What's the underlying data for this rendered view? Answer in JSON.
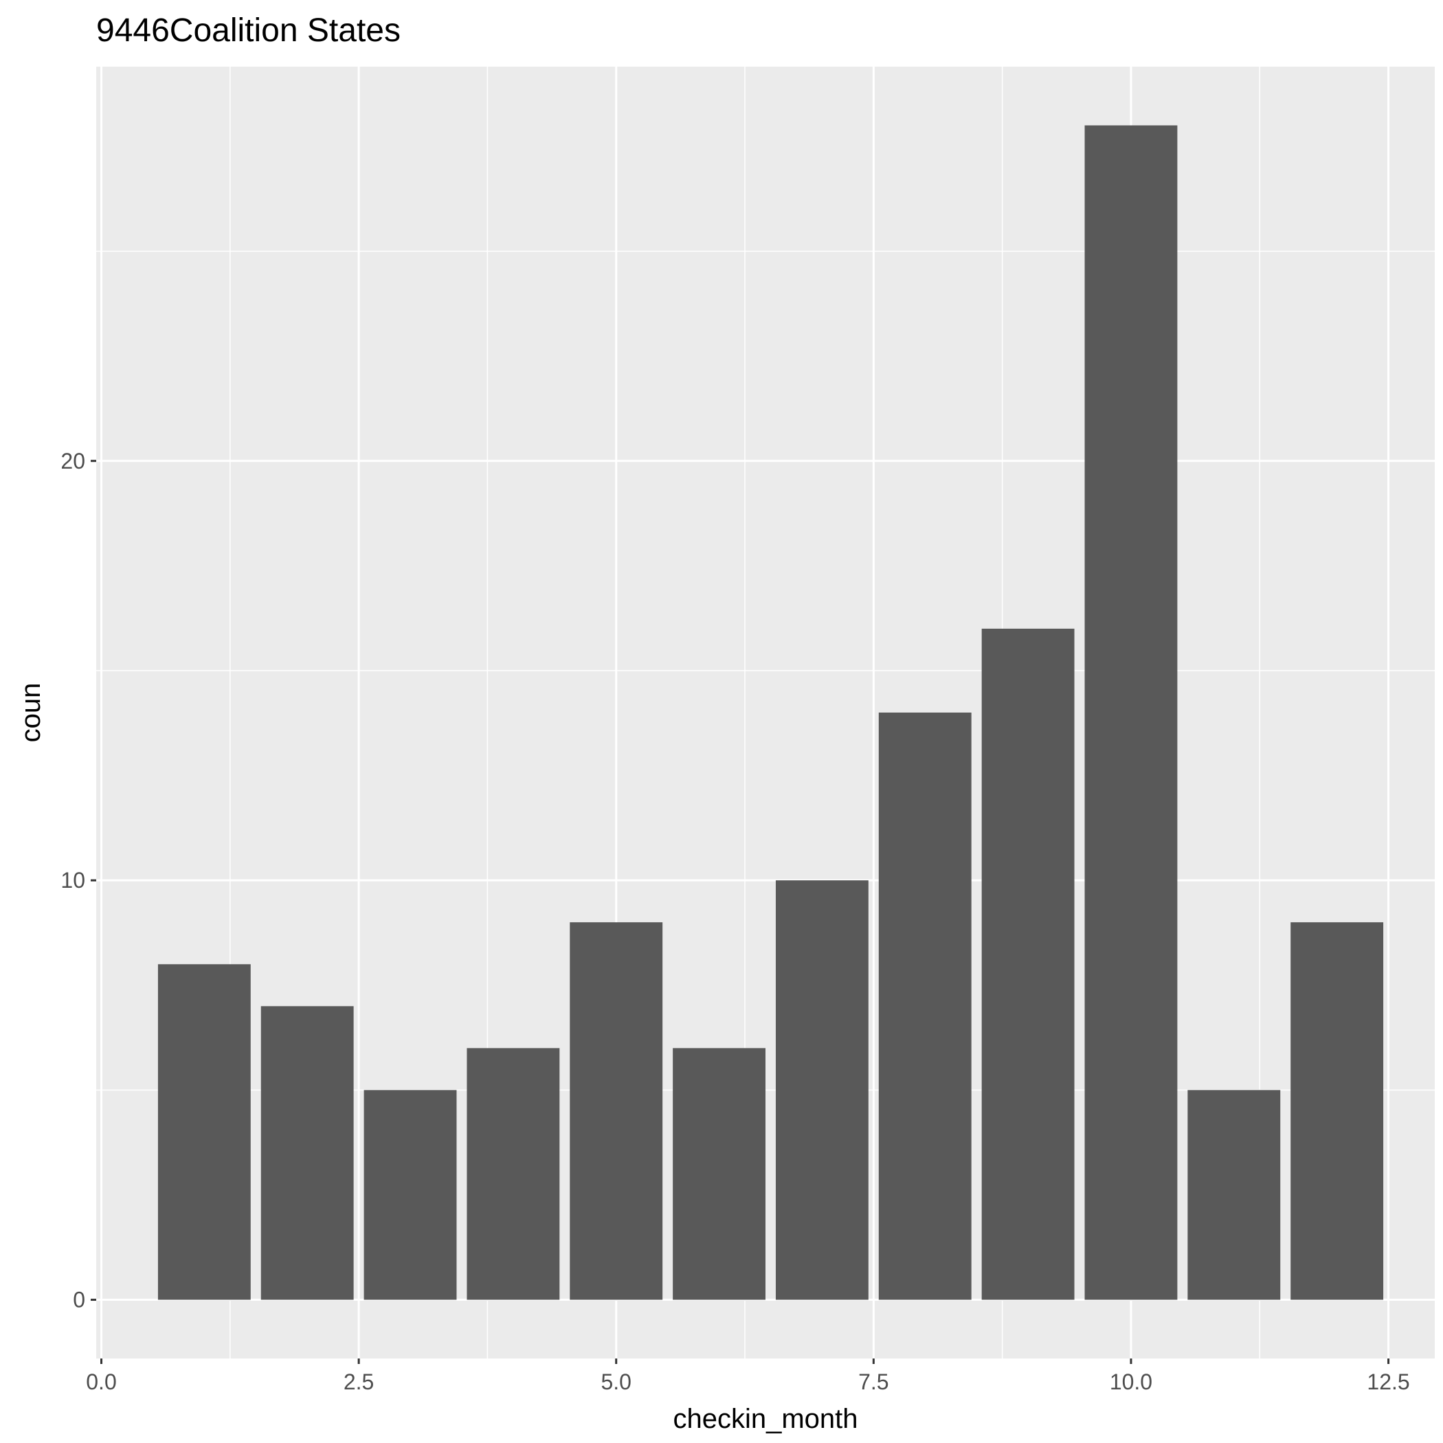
{
  "chart_data": {
    "type": "bar",
    "title": "9446Coalition States",
    "xlabel": "checkin_month",
    "ylabel": "coun",
    "x": [
      1,
      2,
      3,
      4,
      5,
      6,
      7,
      8,
      9,
      10,
      11,
      12
    ],
    "values": [
      8,
      7,
      5,
      6,
      9,
      6,
      10,
      14,
      16,
      28,
      5,
      9
    ],
    "xlim": [
      -0.05,
      12.95
    ],
    "ylim": [
      -1.4,
      29.4
    ],
    "xticks": [
      0,
      2.5,
      5,
      7.5,
      10,
      12.5
    ],
    "xtick_labels": [
      "0.0",
      "2.5",
      "5.0",
      "7.5",
      "10.0",
      "12.5"
    ],
    "yticks": [
      0,
      10,
      20
    ],
    "ytick_labels": [
      "0",
      "10",
      "20"
    ],
    "bar_color": "#595959",
    "panel_color": "#ebebeb",
    "grid": true,
    "legend": "none"
  }
}
